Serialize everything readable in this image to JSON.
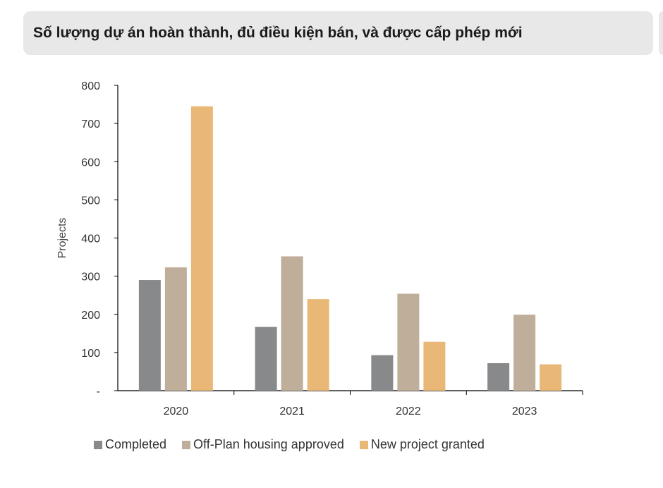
{
  "title": "Số lượng dự án hoàn thành, đủ điều kiện bán, và được cấp phép mới",
  "chart_data": {
    "type": "bar",
    "categories": [
      "2020",
      "2021",
      "2022",
      "2023"
    ],
    "series": [
      {
        "name": "Completed",
        "values": [
          290,
          167,
          93,
          72
        ],
        "color": "#87898b"
      },
      {
        "name": "Off-Plan housing approved",
        "values": [
          323,
          352,
          254,
          199
        ],
        "color": "#bfae99"
      },
      {
        "name": "New project granted",
        "values": [
          745,
          240,
          128,
          69
        ],
        "color": "#e9b877"
      }
    ],
    "ylabel": "Projects",
    "xlabel": "",
    "ylim": [
      0,
      800
    ],
    "yticks": [
      0,
      100,
      200,
      300,
      400,
      500,
      600,
      700,
      800
    ],
    "ytick_labels": [
      "-",
      "100",
      "200",
      "300",
      "400",
      "500",
      "600",
      "700",
      "800"
    ],
    "legend_position": "bottom",
    "grid": false
  }
}
